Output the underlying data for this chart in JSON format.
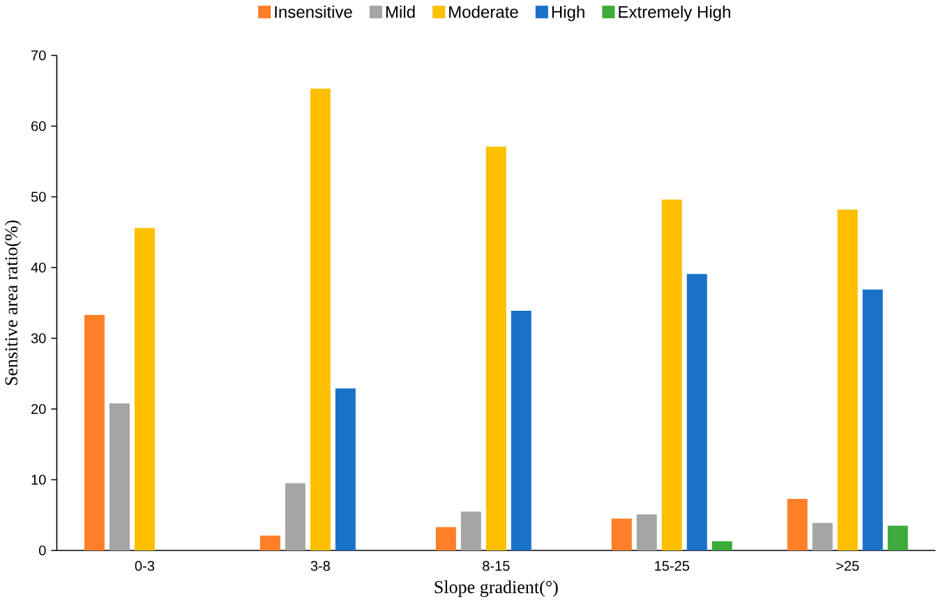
{
  "chart_data": {
    "type": "bar",
    "xlabel": "Slope gradient(°)",
    "ylabel": "Sensitive area ratio(%)",
    "categories": [
      "0-3",
      "3-8",
      "8-15",
      "15-25",
      ">25"
    ],
    "series": [
      {
        "name": "Insensitive",
        "color": "#fe7f27",
        "values": [
          33.3,
          2.1,
          3.3,
          4.5,
          7.3
        ]
      },
      {
        "name": "Mild",
        "color": "#a5a5a5",
        "values": [
          20.8,
          9.5,
          5.5,
          5.1,
          3.9
        ]
      },
      {
        "name": "Moderate",
        "color": "#ffc000",
        "values": [
          45.6,
          65.3,
          57.1,
          49.6,
          48.2
        ]
      },
      {
        "name": "High",
        "color": "#1a71c8",
        "values": [
          null,
          22.9,
          33.9,
          39.1,
          36.9
        ]
      },
      {
        "name": "Extremely High",
        "color": "#3cab3c",
        "values": [
          null,
          null,
          null,
          1.3,
          3.5
        ]
      }
    ],
    "ylim": [
      0,
      70
    ],
    "yticks": [
      0,
      10,
      20,
      30,
      40,
      50,
      60,
      70
    ],
    "grid": false,
    "legend": "top"
  }
}
